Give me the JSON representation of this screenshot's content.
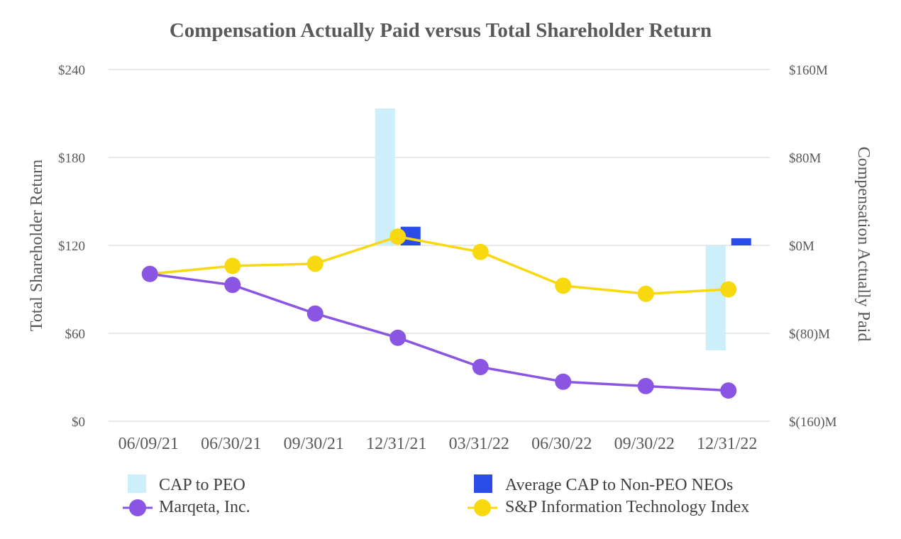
{
  "chart_data": {
    "type": "bar+line",
    "title": "Compensation Actually Paid versus Total Shareholder Return",
    "ylabel_left": "Total Shareholder Return",
    "ylabel_right": "Compensation Actually Paid",
    "categories": [
      "06/09/21",
      "06/30/21",
      "09/30/21",
      "12/31/21",
      "03/31/22",
      "06/30/22",
      "09/30/22",
      "12/31/22"
    ],
    "left_axis": {
      "min": 0,
      "max": 240,
      "ticks": [
        0,
        60,
        120,
        180,
        240
      ],
      "tick_labels": [
        "$0",
        "$60",
        "$120",
        "$180",
        "$240"
      ]
    },
    "right_axis": {
      "min": -160,
      "max": 160,
      "ticks": [
        -160,
        -80,
        0,
        80,
        160
      ],
      "tick_labels": [
        "$(160)M",
        "$(80)M",
        "$0M",
        "$80M",
        "$160M"
      ]
    },
    "bar_series": [
      {
        "name": "CAP to PEO",
        "color": "#cdeefb",
        "axis": "right",
        "points": [
          {
            "category": "12/31/21",
            "value": 124.5
          },
          {
            "category": "12/31/22",
            "value": -95.5
          }
        ]
      },
      {
        "name": "Average CAP to Non-PEO NEOs",
        "color": "#2b4ce8",
        "axis": "right",
        "points": [
          {
            "category": "12/31/21",
            "value": 17
          },
          {
            "category": "12/31/22",
            "value": 6.5
          }
        ]
      }
    ],
    "line_series": [
      {
        "name": "Marqeta, Inc.",
        "color": "#8b55e3",
        "axis": "left",
        "values": [
          100.5,
          93,
          73.5,
          57,
          37,
          27,
          24,
          21
        ]
      },
      {
        "name": "S&P Information Technology Index",
        "color": "#f8d90f",
        "axis": "left",
        "values": [
          100.5,
          106,
          107.5,
          126,
          115.5,
          92.5,
          87,
          90
        ]
      }
    ],
    "grid": true,
    "legend_position": "bottom"
  }
}
